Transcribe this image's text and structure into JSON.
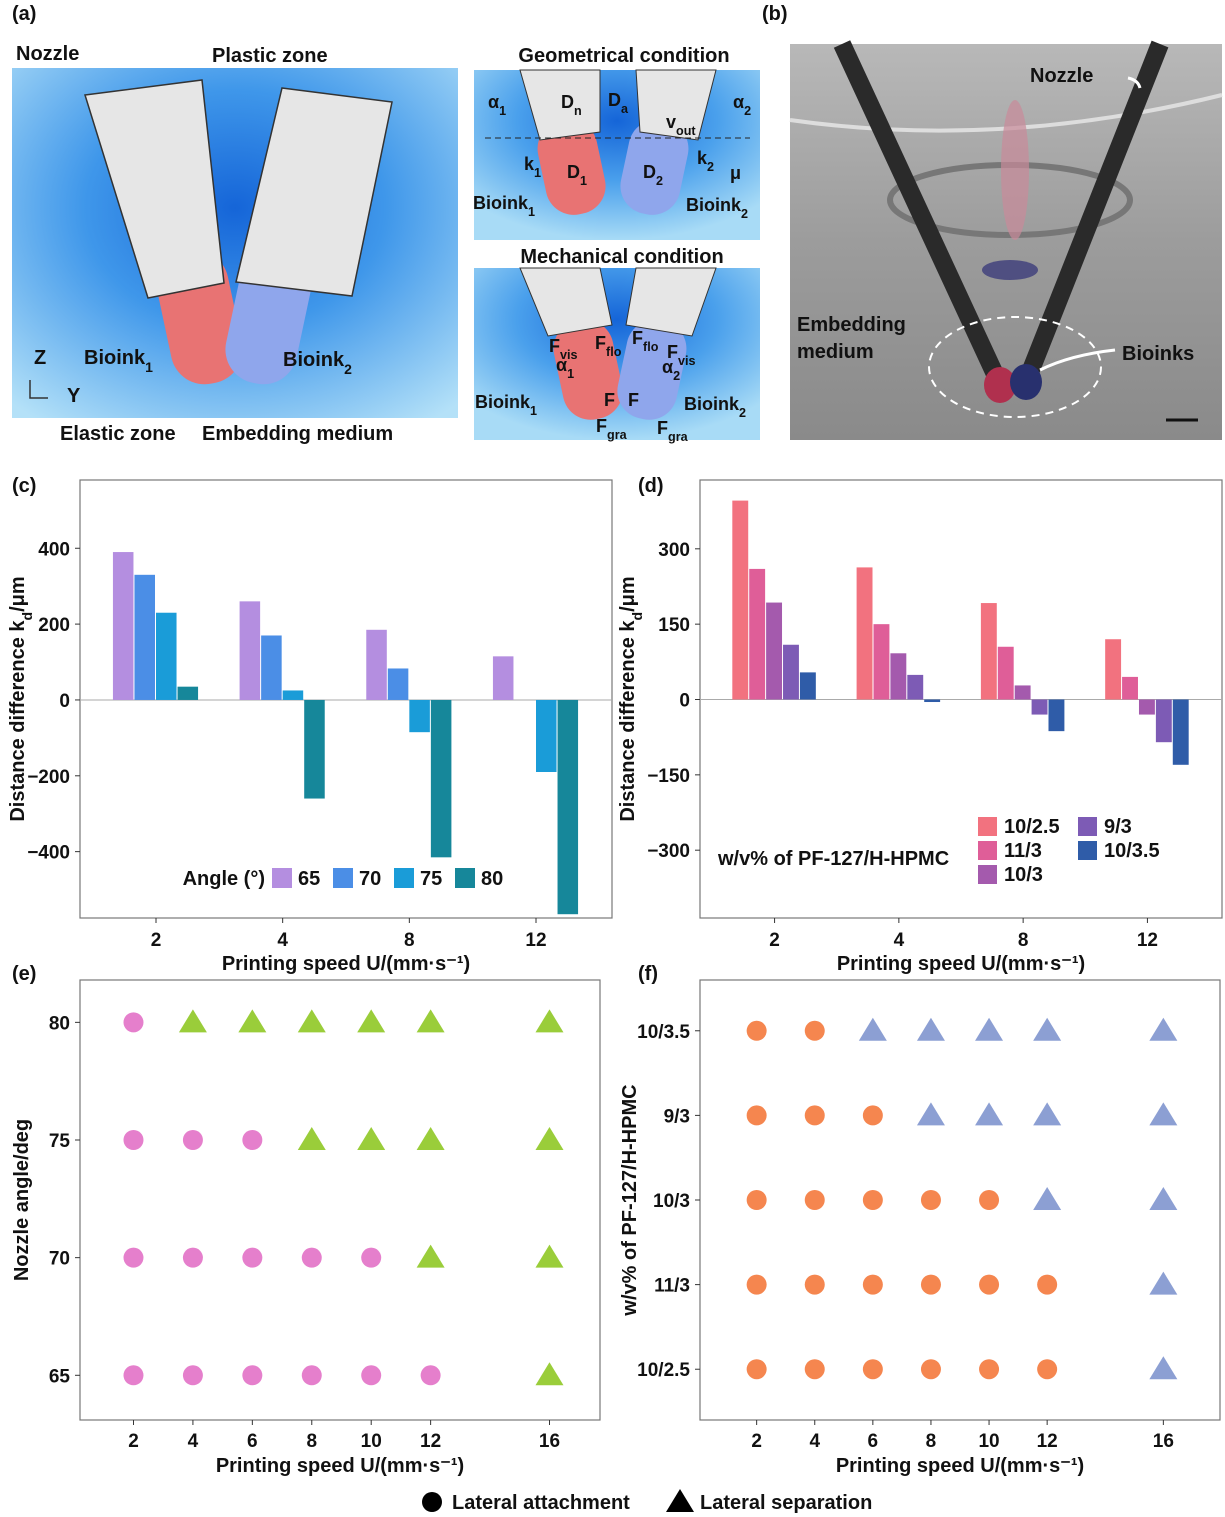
{
  "panel_a": {
    "label": "(a)",
    "nozzle": "Nozzle",
    "plastic_zone": "Plastic zone",
    "bioink1": {
      "base": "Bioink",
      "sub": "1"
    },
    "bioink2": {
      "base": "Bioink",
      "sub": "2"
    },
    "axis_z": "Z",
    "axis_y": "Y",
    "elastic_zone": "Elastic zone",
    "embedding_medium": "Embedding medium",
    "geometrical": {
      "title": "Geometrical condition",
      "labels": [
        {
          "base": "α",
          "sub": "1"
        },
        {
          "base": "D",
          "sub": "n"
        },
        {
          "base": "D",
          "sub": "a"
        },
        {
          "base": "v",
          "sub": "out"
        },
        {
          "base": "α",
          "sub": "2"
        },
        {
          "base": "k",
          "sub": "1"
        },
        {
          "base": "D",
          "sub": "1"
        },
        {
          "base": "D",
          "sub": "2"
        },
        {
          "base": "k",
          "sub": "2"
        },
        {
          "base": "μ"
        },
        {
          "base": "Bioink",
          "sub": "1"
        },
        {
          "base": "Bioink",
          "sub": "2"
        }
      ]
    },
    "mechanical": {
      "title": "Mechanical condition",
      "labels": [
        {
          "base": "F",
          "sub": "vis"
        },
        {
          "base": "F",
          "sub": "flo"
        },
        {
          "base": "α",
          "sub": "1"
        },
        {
          "base": "F"
        },
        {
          "base": "F",
          "sub": "gra"
        },
        {
          "base": "F",
          "sub": "flo"
        },
        {
          "base": "F",
          "sub": "vis"
        },
        {
          "base": "α",
          "sub": "2"
        },
        {
          "base": "F"
        },
        {
          "base": "F",
          "sub": "gra"
        },
        {
          "base": "Bioink",
          "sub": "1"
        },
        {
          "base": "Bioink",
          "sub": "2"
        }
      ]
    }
  },
  "panel_b": {
    "label": "(b)",
    "nozzle": "Nozzle",
    "embedding_medium": [
      "Embedding",
      "medium"
    ],
    "bioinks": "Bioinks"
  },
  "chart_data": [
    {
      "type": "bar",
      "panel": "(c)",
      "categories": [
        "2",
        "4",
        "8",
        "12"
      ],
      "series": [
        {
          "name": "65",
          "color": "#b48ee0",
          "values": [
            390,
            260,
            185,
            115
          ]
        },
        {
          "name": "70",
          "color": "#4b8ee6",
          "values": [
            330,
            170,
            83,
            null
          ]
        },
        {
          "name": "75",
          "color": "#1a9cd8",
          "values": [
            230,
            25,
            -85,
            -190
          ]
        },
        {
          "name": "80",
          "color": "#16879a",
          "values": [
            35,
            -260,
            -415,
            -565
          ]
        }
      ],
      "ylim": [
        -575,
        580
      ],
      "yticks": [
        {
          "value": -400,
          "label": "−400"
        },
        {
          "value": -200,
          "label": "−200"
        },
        0,
        200,
        400
      ],
      "x_label": "Printing speed U/(mm·s⁻¹)",
      "y_label": {
        "base": "Distance difference k",
        "sub": "d",
        "tail": "/μm"
      },
      "legend_title": "Angle (°)",
      "legend_rows": 1
    },
    {
      "type": "bar",
      "panel": "(d)",
      "categories": [
        "2",
        "4",
        "8",
        "12"
      ],
      "series": [
        {
          "name": "10/2.5",
          "color": "#f2727f",
          "values": [
            396,
            263,
            192,
            120
          ]
        },
        {
          "name": "11/3",
          "color": "#df5e98",
          "values": [
            260,
            150,
            105,
            45
          ]
        },
        {
          "name": "10/3",
          "color": "#a45aad",
          "values": [
            193,
            92,
            28,
            -30
          ]
        },
        {
          "name": "9/3",
          "color": "#7d5bb5",
          "values": [
            109,
            49,
            -30,
            -85
          ]
        },
        {
          "name": "10/3.5",
          "color": "#2f5ca8",
          "values": [
            54,
            -5,
            -63,
            -130
          ]
        }
      ],
      "ylim": [
        -435,
        437
      ],
      "yticks": [
        {
          "value": -300,
          "label": "−300"
        },
        {
          "value": -150,
          "label": "−150"
        },
        0,
        150,
        300
      ],
      "x_label": "Printing speed U/(mm·s⁻¹)",
      "y_label": {
        "base": "Distance difference k",
        "sub": "d",
        "tail": "/μm"
      },
      "legend_title": "w/v% of PF-127/H-HPMC",
      "legend_rows": 3
    },
    {
      "type": "scatter",
      "panel": "(e)",
      "xlim": [
        0.2,
        17.7
      ],
      "xticks": [
        2,
        4,
        6,
        8,
        10,
        12,
        16
      ],
      "ylim": [
        63.1,
        81.8
      ],
      "yticks": [
        65,
        70,
        75,
        80
      ],
      "series": [
        {
          "marker": "circle",
          "color": "#e57fcc",
          "x": [
            2,
            2,
            4,
            6,
            2,
            4,
            6,
            8,
            10,
            2,
            4,
            6,
            8,
            10,
            12
          ],
          "y": [
            80,
            75,
            75,
            75,
            70,
            70,
            70,
            70,
            70,
            65,
            65,
            65,
            65,
            65,
            65
          ]
        },
        {
          "marker": "triangle",
          "color": "#9acd3a",
          "x": [
            4,
            6,
            8,
            10,
            12,
            16,
            8,
            10,
            12,
            16,
            12,
            16,
            16
          ],
          "y": [
            80,
            80,
            80,
            80,
            80,
            80,
            75,
            75,
            75,
            75,
            70,
            70,
            65
          ]
        }
      ],
      "x_label": "Printing speed U/(mm·s⁻¹)",
      "y_label": "Nozzle angle/deg"
    },
    {
      "type": "scatter",
      "panel": "(f)",
      "xlim": [
        0.05,
        17.95
      ],
      "xticks": [
        2,
        4,
        6,
        8,
        10,
        12,
        16
      ],
      "categories": [
        "10/2.5",
        "11/3",
        "10/3",
        "9/3",
        "10/3.5"
      ],
      "series": [
        {
          "marker": "circle",
          "color": "#f5864f",
          "x": [
            2,
            4,
            2,
            4,
            6,
            2,
            4,
            6,
            8,
            10,
            2,
            4,
            6,
            8,
            10,
            12,
            2,
            4,
            6,
            8,
            10,
            12
          ],
          "y": [
            "10/3.5",
            "10/3.5",
            "9/3",
            "9/3",
            "9/3",
            "10/3",
            "10/3",
            "10/3",
            "10/3",
            "10/3",
            "11/3",
            "11/3",
            "11/3",
            "11/3",
            "11/3",
            "11/3",
            "10/2.5",
            "10/2.5",
            "10/2.5",
            "10/2.5",
            "10/2.5",
            "10/2.5"
          ]
        },
        {
          "marker": "triangle",
          "color": "#8c9fd3",
          "x": [
            6,
            8,
            10,
            12,
            16,
            8,
            10,
            12,
            16,
            12,
            16,
            16,
            16
          ],
          "y": [
            "10/3.5",
            "10/3.5",
            "10/3.5",
            "10/3.5",
            "10/3.5",
            "9/3",
            "9/3",
            "9/3",
            "9/3",
            "10/3",
            "10/3",
            "11/3",
            "10/2.5"
          ]
        }
      ],
      "x_label": "Printing speed U/(mm·s⁻¹)",
      "y_label": "w/v% of PF-127/H-HPMC"
    }
  ],
  "legend": [
    {
      "name": "Lateral attachment",
      "marker": "circle"
    },
    {
      "name": "Lateral separation",
      "marker": "triangle"
    }
  ]
}
